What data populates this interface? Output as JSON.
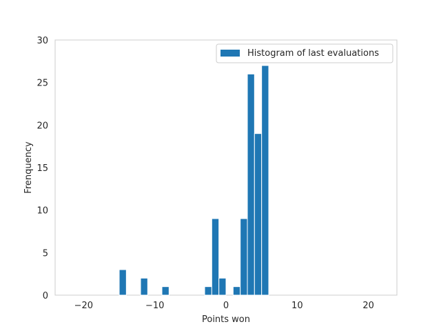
{
  "chart_data": {
    "type": "bar",
    "title": "",
    "xlabel": "Points won",
    "ylabel": "Frenquency",
    "xlim": [
      -24,
      24
    ],
    "ylim": [
      0,
      30
    ],
    "xticks": [
      -20,
      -10,
      0,
      10,
      20
    ],
    "yticks": [
      0,
      5,
      10,
      15,
      20,
      25,
      30
    ],
    "grid": false,
    "legend_position": "top-right",
    "bar_color": "#1f77b4",
    "series": [
      {
        "name": "Histogram of last evaluations",
        "bins": [
          {
            "x0": -15,
            "x1": -14,
            "value": 3
          },
          {
            "x0": -12,
            "x1": -11,
            "value": 2
          },
          {
            "x0": -9,
            "x1": -8,
            "value": 1
          },
          {
            "x0": -3,
            "x1": -2,
            "value": 1
          },
          {
            "x0": -2,
            "x1": -1,
            "value": 9
          },
          {
            "x0": -1,
            "x1": 0,
            "value": 2
          },
          {
            "x0": 1,
            "x1": 2,
            "value": 1
          },
          {
            "x0": 2,
            "x1": 3,
            "value": 9
          },
          {
            "x0": 3,
            "x1": 4,
            "value": 26
          },
          {
            "x0": 4,
            "x1": 5,
            "value": 19
          },
          {
            "x0": 5,
            "x1": 6,
            "value": 27
          }
        ]
      }
    ]
  }
}
